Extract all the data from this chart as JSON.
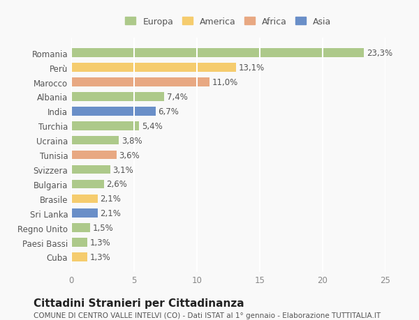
{
  "countries": [
    "Romania",
    "Perù",
    "Marocco",
    "Albania",
    "India",
    "Turchia",
    "Ucraina",
    "Tunisia",
    "Svizzera",
    "Bulgaria",
    "Brasile",
    "Sri Lanka",
    "Regno Unito",
    "Paesi Bassi",
    "Cuba"
  ],
  "values": [
    23.3,
    13.1,
    11.0,
    7.4,
    6.7,
    5.4,
    3.8,
    3.6,
    3.1,
    2.6,
    2.1,
    2.1,
    1.5,
    1.3,
    1.3
  ],
  "labels": [
    "23,3%",
    "13,1%",
    "11,0%",
    "7,4%",
    "6,7%",
    "5,4%",
    "3,8%",
    "3,6%",
    "3,1%",
    "2,6%",
    "2,1%",
    "2,1%",
    "1,5%",
    "1,3%",
    "1,3%"
  ],
  "continents": [
    "Europa",
    "America",
    "Africa",
    "Europa",
    "Asia",
    "Europa",
    "Europa",
    "Africa",
    "Europa",
    "Europa",
    "America",
    "Asia",
    "Europa",
    "Europa",
    "America"
  ],
  "continent_colors": {
    "Europa": "#adc98a",
    "America": "#f5cc6e",
    "Africa": "#e8a882",
    "Asia": "#6a8fc8"
  },
  "legend_order": [
    "Europa",
    "America",
    "Africa",
    "Asia"
  ],
  "legend_colors": {
    "Europa": "#adc98a",
    "America": "#f5cc6e",
    "Africa": "#e8a882",
    "Asia": "#6a8fc8"
  },
  "xlim": [
    0,
    25
  ],
  "xticks": [
    0,
    5,
    10,
    15,
    20,
    25
  ],
  "title": "Cittadini Stranieri per Cittadinanza",
  "subtitle": "COMUNE DI CENTRO VALLE INTELVI (CO) - Dati ISTAT al 1° gennaio - Elaborazione TUTTITALIA.IT",
  "background_color": "#f9f9f9",
  "grid_color": "#ffffff",
  "bar_height": 0.6,
  "label_fontsize": 8.5,
  "tick_fontsize": 8.5,
  "title_fontsize": 11,
  "subtitle_fontsize": 7.5
}
